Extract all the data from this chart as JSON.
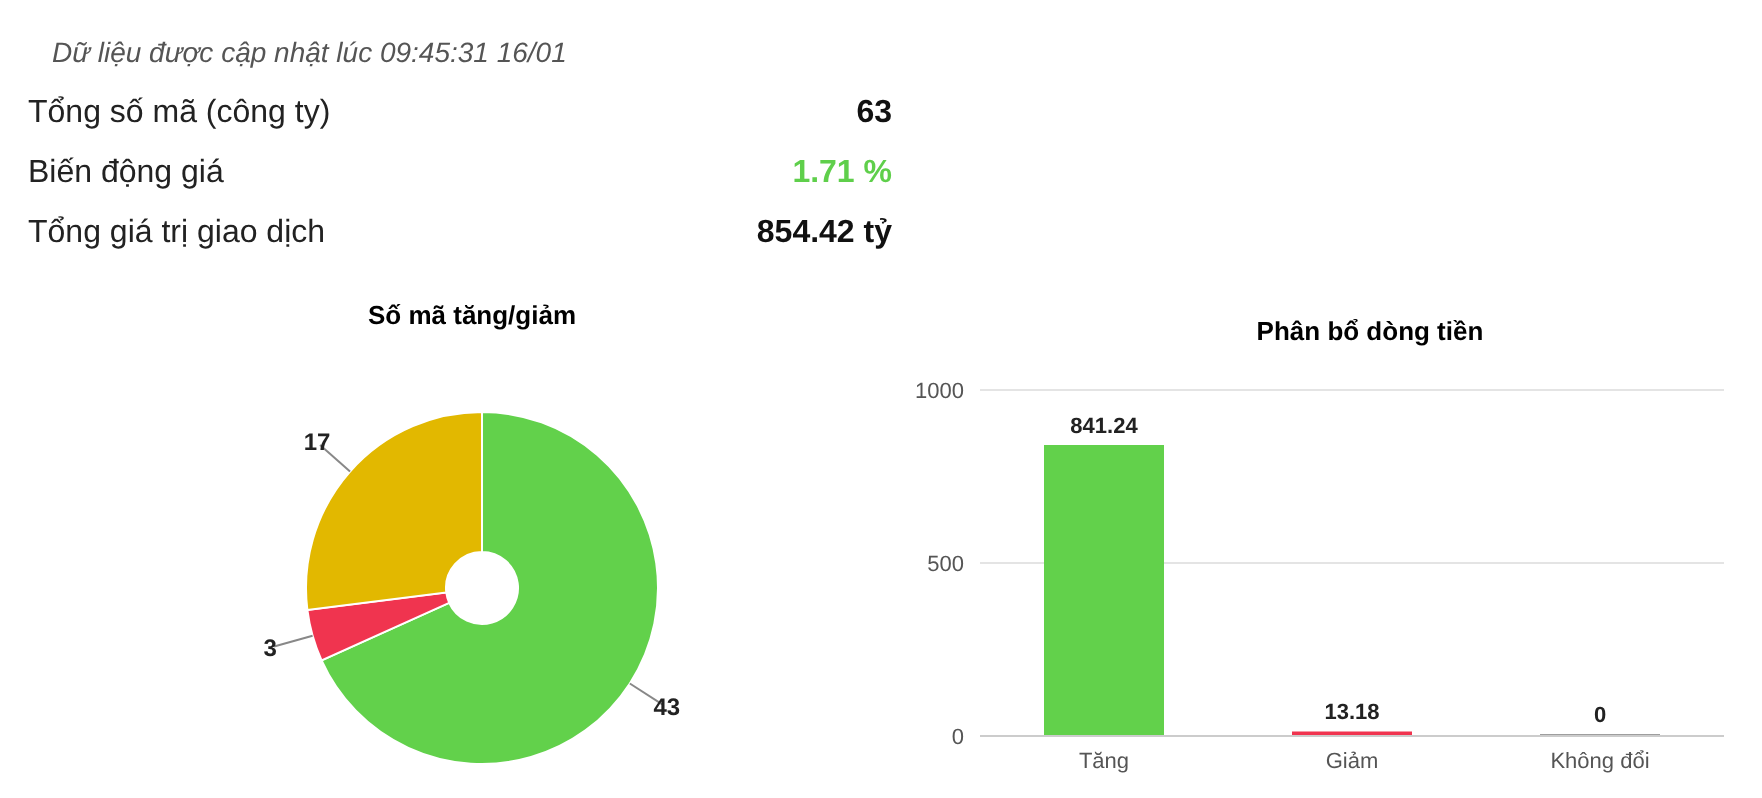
{
  "chart_data": [
    {
      "type": "other",
      "title": "Dữ liệu được cập nhật lúc 09:45:31 16/01",
      "categories": [
        "Tổng số mã (công ty)",
        "Biến động giá",
        "Tổng giá trị giao dịch"
      ],
      "value_labels": [
        "63",
        "1.71 %",
        "854.42 tỷ"
      ],
      "colors": [
        "#111111",
        "#5fcf4b",
        "#111111"
      ]
    },
    {
      "type": "donut",
      "title": "Số mã tăng/giảm",
      "categories": [
        null,
        null,
        null
      ],
      "values": [
        43,
        3,
        17
      ],
      "colors": [
        "#62d14b",
        "#f0344f",
        "#e2b800"
      ],
      "data_labels": true
    },
    {
      "type": "bar",
      "title": "Phân bổ dòng tiền",
      "categories": [
        "Tăng",
        "Giảm",
        "Không đổi"
      ],
      "values": [
        841.24,
        13.18,
        0
      ],
      "colors": [
        "#62d14b",
        "#f0344f",
        "#9e9e9e"
      ],
      "ylim": [
        0,
        1000
      ],
      "yticks": [
        0,
        500,
        1000
      ],
      "grid": "y",
      "data_labels": true
    }
  ]
}
